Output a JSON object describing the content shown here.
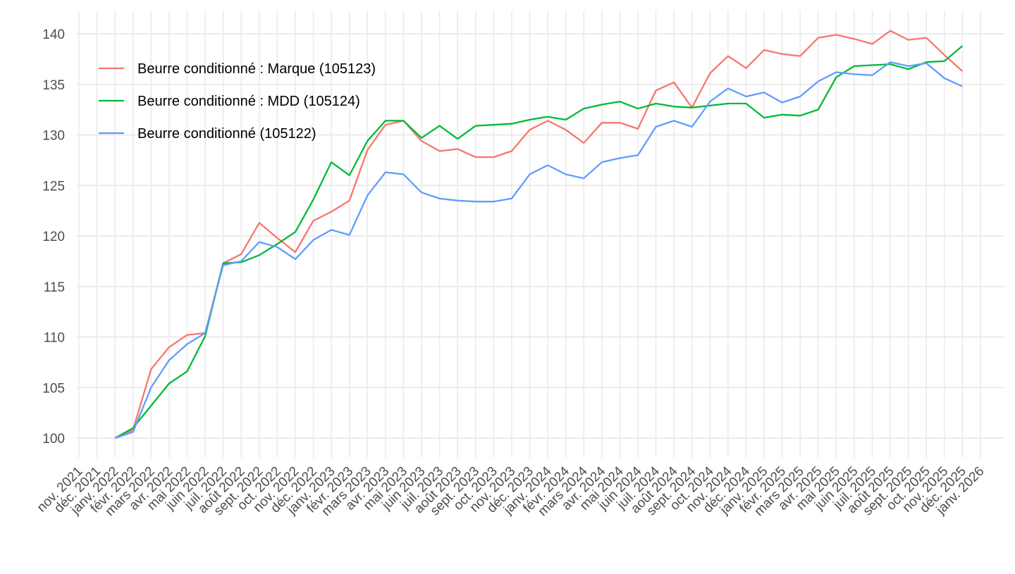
{
  "chart_data": {
    "type": "line",
    "categories": [
      "nov. 2021",
      "déc. 2021",
      "janv. 2022",
      "févr. 2022",
      "mars 2022",
      "avr. 2022",
      "mai 2022",
      "juin 2022",
      "juil. 2022",
      "août 2022",
      "sept. 2022",
      "oct. 2022",
      "nov. 2022",
      "déc. 2022",
      "janv. 2023",
      "févr. 2023",
      "mars 2023",
      "avr. 2023",
      "mai 2023",
      "juin 2023",
      "juil. 2023",
      "août 2023",
      "sept. 2023",
      "oct. 2023",
      "nov. 2023",
      "déc. 2023",
      "janv. 2024",
      "févr. 2024",
      "mars 2024",
      "avr. 2024",
      "mai 2024",
      "juin 2024",
      "juil. 2024",
      "août 2024",
      "sept. 2024",
      "oct. 2024",
      "nov. 2024",
      "déc. 2024",
      "janv. 2025",
      "févr. 2025",
      "mars 2025",
      "avr. 2025",
      "mai 2025",
      "juin 2025",
      "juil. 2025",
      "août 2025",
      "sept. 2025",
      "oct. 2025",
      "nov. 2025",
      "déc. 2025",
      "janv. 2026"
    ],
    "series": [
      {
        "name": "Beurre conditionné : Marque (105123)",
        "color": "#f8766d",
        "values": [
          null,
          null,
          100,
          100.8,
          106.8,
          109.0,
          110.2,
          110.4,
          117.3,
          118.2,
          121.3,
          119.8,
          118.4,
          121.5,
          122.4,
          123.5,
          128.5,
          131.0,
          131.4,
          129.4,
          128.4,
          128.6,
          127.8,
          127.8,
          128.4,
          130.5,
          131.4,
          130.5,
          129.2,
          131.2,
          131.2,
          130.6,
          134.4,
          135.2,
          132.7,
          136.1,
          137.8,
          136.6,
          138.4,
          138.0,
          137.8,
          139.6,
          139.9,
          139.5,
          139.0,
          140.3,
          139.4,
          139.6,
          137.9,
          136.3,
          null
        ]
      },
      {
        "name": "Beurre conditionné : MDD (105124)",
        "color": "#00ba38",
        "values": [
          null,
          null,
          100,
          101.0,
          103.2,
          105.4,
          106.6,
          110.1,
          117.3,
          117.4,
          118.1,
          119.2,
          120.4,
          123.6,
          127.3,
          126.0,
          129.4,
          131.4,
          131.4,
          129.7,
          130.9,
          129.6,
          130.9,
          131.0,
          131.1,
          131.5,
          131.8,
          131.5,
          132.6,
          133.0,
          133.3,
          132.6,
          133.1,
          132.8,
          132.7,
          132.9,
          133.1,
          133.1,
          131.7,
          132.0,
          131.9,
          132.5,
          135.7,
          136.8,
          136.9,
          137.0,
          136.5,
          137.2,
          137.3,
          138.8,
          null
        ]
      },
      {
        "name": "Beurre conditionné (105122)",
        "color": "#619cff",
        "values": [
          null,
          null,
          100,
          100.6,
          105.0,
          107.7,
          109.3,
          110.4,
          117.1,
          117.5,
          119.4,
          118.9,
          117.7,
          119.6,
          120.6,
          120.1,
          124.0,
          126.3,
          126.1,
          124.3,
          123.7,
          123.5,
          123.4,
          123.4,
          123.7,
          126.1,
          127.0,
          126.1,
          125.7,
          127.3,
          127.7,
          128.0,
          130.8,
          131.4,
          130.8,
          133.3,
          134.6,
          133.8,
          134.2,
          133.2,
          133.8,
          135.3,
          136.2,
          136.0,
          135.9,
          137.2,
          136.8,
          137.1,
          135.6,
          134.8,
          null
        ]
      }
    ],
    "ylim": [
      98.05,
      142.3
    ],
    "yticks": [
      100,
      105,
      110,
      115,
      120,
      125,
      130,
      135,
      140
    ],
    "grid": true,
    "legend": "top-left"
  }
}
